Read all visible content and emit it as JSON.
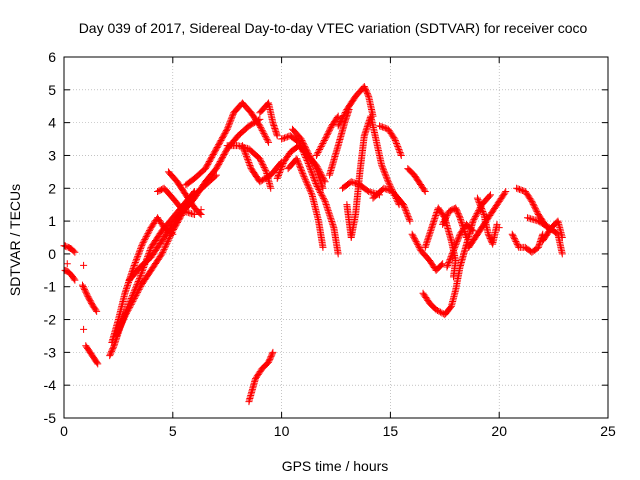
{
  "chart_data": {
    "type": "scatter",
    "title": "Day 039 of 2017, Sidereal Day-to-day VTEC variation (SDTVAR) for receiver coco",
    "xlabel": "GPS time / hours",
    "ylabel": "SDTVAR / TECUs",
    "xlim": [
      0,
      25
    ],
    "ylim": [
      -5,
      6
    ],
    "xticks": [
      0,
      5,
      10,
      15,
      20,
      25
    ],
    "yticks": [
      -5,
      -4,
      -3,
      -2,
      -1,
      0,
      1,
      2,
      3,
      4,
      5,
      6
    ],
    "grid": true,
    "legend": "none",
    "marker": "+",
    "color": "#ff0000",
    "traces": [
      {
        "points": [
          [
            0.0,
            0.25
          ],
          [
            0.2,
            0.2
          ],
          [
            0.35,
            0.15
          ],
          [
            0.5,
            0.05
          ]
        ]
      },
      {
        "points": [
          [
            0.05,
            -0.5
          ],
          [
            0.2,
            -0.55
          ],
          [
            0.35,
            -0.65
          ],
          [
            0.5,
            -0.8
          ]
        ]
      },
      {
        "points": [
          [
            0.85,
            -0.95
          ],
          [
            1.1,
            -1.3
          ],
          [
            1.3,
            -1.55
          ],
          [
            1.5,
            -1.75
          ]
        ]
      },
      {
        "points": [
          [
            1.0,
            -2.8
          ],
          [
            1.2,
            -3.0
          ],
          [
            1.4,
            -3.2
          ],
          [
            1.55,
            -3.35
          ]
        ]
      },
      {
        "points": [
          [
            2.1,
            -3.1
          ],
          [
            2.3,
            -2.8
          ],
          [
            2.6,
            -2.2
          ],
          [
            3.0,
            -1.5
          ],
          [
            3.5,
            -0.7
          ],
          [
            4.0,
            0.2
          ],
          [
            4.5,
            0.7
          ],
          [
            5.0,
            1.1
          ],
          [
            5.5,
            1.5
          ],
          [
            6.0,
            1.9
          ]
        ]
      },
      {
        "points": [
          [
            2.2,
            -2.7
          ],
          [
            2.5,
            -2.0
          ],
          [
            2.8,
            -1.2
          ],
          [
            3.2,
            -0.4
          ],
          [
            3.6,
            0.3
          ],
          [
            4.0,
            0.8
          ],
          [
            4.3,
            1.1
          ],
          [
            4.6,
            0.8
          ],
          [
            5.0,
            0.6
          ]
        ]
      },
      {
        "points": [
          [
            2.4,
            -2.5
          ],
          [
            2.8,
            -1.9
          ],
          [
            3.2,
            -1.4
          ],
          [
            3.6,
            -0.9
          ],
          [
            4.0,
            -0.5
          ],
          [
            4.5,
            0.0
          ],
          [
            5.0,
            0.7
          ],
          [
            5.5,
            1.3
          ],
          [
            6.0,
            1.7
          ],
          [
            6.5,
            2.2
          ],
          [
            7.0,
            2.6
          ],
          [
            7.5,
            3.2
          ],
          [
            8.0,
            3.6
          ],
          [
            8.5,
            3.9
          ],
          [
            9.0,
            4.1
          ]
        ]
      },
      {
        "points": [
          [
            3.0,
            -0.8
          ],
          [
            3.5,
            -0.4
          ],
          [
            4.0,
            -0.1
          ],
          [
            4.5,
            0.4
          ],
          [
            5.0,
            0.9
          ],
          [
            5.5,
            1.4
          ],
          [
            6.0,
            1.8
          ],
          [
            6.5,
            2.1
          ],
          [
            7.0,
            2.4
          ]
        ]
      },
      {
        "points": [
          [
            4.3,
            1.9
          ],
          [
            4.6,
            2.0
          ],
          [
            5.0,
            1.7
          ],
          [
            5.5,
            1.3
          ],
          [
            6.0,
            1.2
          ]
        ]
      },
      {
        "points": [
          [
            4.8,
            2.5
          ],
          [
            5.2,
            2.2
          ],
          [
            5.6,
            1.8
          ],
          [
            6.0,
            1.4
          ],
          [
            6.3,
            1.2
          ]
        ]
      },
      {
        "points": [
          [
            5.6,
            2.1
          ],
          [
            6.0,
            2.3
          ],
          [
            6.5,
            2.6
          ],
          [
            7.0,
            3.2
          ],
          [
            7.5,
            3.8
          ],
          [
            7.8,
            4.3
          ],
          [
            8.2,
            4.6
          ],
          [
            8.6,
            4.3
          ],
          [
            9.0,
            3.9
          ],
          [
            9.4,
            3.4
          ]
        ]
      },
      {
        "points": [
          [
            7.5,
            3.3
          ],
          [
            8.0,
            3.3
          ],
          [
            8.5,
            3.2
          ],
          [
            9.0,
            2.9
          ],
          [
            9.3,
            2.5
          ],
          [
            9.5,
            2.0
          ]
        ]
      },
      {
        "points": [
          [
            8.2,
            3.3
          ],
          [
            8.6,
            2.6
          ],
          [
            9.0,
            2.2
          ],
          [
            9.5,
            2.4
          ],
          [
            10.0,
            2.8
          ]
        ]
      },
      {
        "points": [
          [
            9.0,
            4.3
          ],
          [
            9.4,
            4.6
          ],
          [
            9.6,
            4.0
          ],
          [
            9.8,
            3.6
          ]
        ]
      },
      {
        "points": [
          [
            8.5,
            -4.5
          ],
          [
            8.8,
            -3.8
          ],
          [
            9.1,
            -3.5
          ],
          [
            9.4,
            -3.3
          ],
          [
            9.6,
            -3.0
          ]
        ]
      },
      {
        "points": [
          [
            9.8,
            2.3
          ],
          [
            10.1,
            2.8
          ],
          [
            10.4,
            3.1
          ],
          [
            10.8,
            3.3
          ],
          [
            11.2,
            3.0
          ],
          [
            11.6,
            2.7
          ],
          [
            12.0,
            2.2
          ]
        ]
      },
      {
        "points": [
          [
            10.0,
            3.5
          ],
          [
            10.4,
            3.6
          ],
          [
            10.8,
            3.4
          ],
          [
            11.2,
            2.8
          ],
          [
            11.6,
            2.1
          ],
          [
            12.0,
            1.6
          ],
          [
            12.4,
            0.8
          ],
          [
            12.6,
            0.0
          ]
        ]
      },
      {
        "points": [
          [
            10.3,
            2.6
          ],
          [
            10.7,
            2.9
          ],
          [
            11.0,
            2.4
          ],
          [
            11.4,
            1.8
          ],
          [
            11.7,
            1.0
          ],
          [
            11.9,
            0.2
          ]
        ]
      },
      {
        "points": [
          [
            10.5,
            3.8
          ],
          [
            10.9,
            3.5
          ],
          [
            11.2,
            3.1
          ],
          [
            11.6,
            2.6
          ],
          [
            11.9,
            2.0
          ]
        ]
      },
      {
        "points": [
          [
            11.6,
            3.0
          ],
          [
            12.0,
            3.5
          ],
          [
            12.3,
            3.9
          ],
          [
            12.6,
            4.2
          ]
        ]
      },
      {
        "points": [
          [
            12.2,
            2.4
          ],
          [
            12.6,
            3.3
          ],
          [
            12.9,
            4.0
          ],
          [
            13.1,
            4.4
          ]
        ]
      },
      {
        "points": [
          [
            12.6,
            3.9
          ],
          [
            13.0,
            4.4
          ],
          [
            13.4,
            4.8
          ],
          [
            13.8,
            5.1
          ],
          [
            14.0,
            4.8
          ],
          [
            14.2,
            4.2
          ]
        ]
      },
      {
        "points": [
          [
            12.8,
            2.0
          ],
          [
            13.2,
            2.2
          ],
          [
            13.6,
            2.1
          ],
          [
            14.0,
            1.9
          ],
          [
            14.5,
            1.8
          ]
        ]
      },
      {
        "points": [
          [
            13.0,
            1.5
          ],
          [
            13.2,
            0.5
          ],
          [
            13.4,
            1.2
          ],
          [
            13.6,
            2.5
          ],
          [
            13.8,
            3.6
          ],
          [
            14.1,
            4.2
          ],
          [
            14.3,
            3.6
          ],
          [
            14.6,
            2.7
          ],
          [
            14.9,
            2.2
          ],
          [
            15.4,
            1.5
          ]
        ]
      },
      {
        "points": [
          [
            14.5,
            3.9
          ],
          [
            14.9,
            3.8
          ],
          [
            15.2,
            3.5
          ],
          [
            15.5,
            3.0
          ]
        ]
      },
      {
        "points": [
          [
            14.2,
            1.7
          ],
          [
            14.7,
            2.0
          ],
          [
            15.1,
            1.9
          ],
          [
            15.6,
            1.5
          ],
          [
            15.9,
            1.0
          ]
        ]
      },
      {
        "points": [
          [
            15.8,
            2.6
          ],
          [
            16.1,
            2.4
          ],
          [
            16.3,
            2.2
          ],
          [
            16.6,
            1.9
          ]
        ]
      },
      {
        "points": [
          [
            16.0,
            0.6
          ],
          [
            16.4,
            0.1
          ],
          [
            16.8,
            -0.2
          ],
          [
            17.1,
            -0.5
          ],
          [
            17.4,
            -0.3
          ]
        ]
      },
      {
        "points": [
          [
            16.6,
            0.2
          ],
          [
            16.9,
            0.8
          ],
          [
            17.2,
            1.4
          ],
          [
            17.5,
            1.1
          ],
          [
            17.8,
            0.4
          ],
          [
            18.0,
            -0.2
          ],
          [
            17.9,
            -0.7
          ]
        ]
      },
      {
        "points": [
          [
            16.5,
            -1.2
          ],
          [
            16.8,
            -1.5
          ],
          [
            17.1,
            -1.7
          ],
          [
            17.5,
            -1.85
          ],
          [
            17.8,
            -1.6
          ],
          [
            18.0,
            -1.1
          ],
          [
            18.2,
            -0.4
          ],
          [
            18.5,
            0.3
          ],
          [
            18.8,
            1.0
          ],
          [
            19.2,
            1.5
          ],
          [
            19.6,
            1.8
          ]
        ]
      },
      {
        "points": [
          [
            17.6,
            -0.4
          ],
          [
            17.9,
            0.1
          ],
          [
            18.2,
            0.6
          ],
          [
            18.5,
            0.9
          ],
          [
            18.8,
            0.7
          ]
        ]
      },
      {
        "points": [
          [
            17.4,
            0.9
          ],
          [
            17.7,
            1.3
          ],
          [
            18.0,
            1.4
          ],
          [
            18.2,
            1.1
          ],
          [
            18.5,
            0.5
          ]
        ]
      },
      {
        "points": [
          [
            18.6,
            0.2
          ],
          [
            19.0,
            0.6
          ],
          [
            19.4,
            1.0
          ],
          [
            19.7,
            1.3
          ],
          [
            20.0,
            1.6
          ],
          [
            20.3,
            1.9
          ]
        ]
      },
      {
        "points": [
          [
            19.0,
            1.7
          ],
          [
            19.3,
            1.2
          ],
          [
            19.5,
            0.6
          ],
          [
            19.7,
            0.3
          ],
          [
            19.9,
            0.9
          ]
        ]
      },
      {
        "points": [
          [
            20.6,
            0.6
          ],
          [
            20.9,
            0.2
          ],
          [
            21.2,
            0.2
          ],
          [
            21.5,
            0.05
          ],
          [
            21.8,
            0.2
          ],
          [
            22.0,
            0.6
          ]
        ]
      },
      {
        "points": [
          [
            20.8,
            2.0
          ],
          [
            21.2,
            1.9
          ],
          [
            21.5,
            1.6
          ],
          [
            21.8,
            1.2
          ],
          [
            22.2,
            0.8
          ]
        ]
      },
      {
        "points": [
          [
            21.3,
            1.1
          ],
          [
            21.8,
            1.0
          ],
          [
            22.3,
            0.8
          ],
          [
            22.7,
            0.6
          ],
          [
            22.9,
            0.0
          ]
        ]
      },
      {
        "points": [
          [
            22.0,
            0.4
          ],
          [
            22.4,
            0.8
          ],
          [
            22.7,
            1.0
          ],
          [
            22.9,
            0.5
          ]
        ]
      }
    ],
    "isolated_points": [
      [
        0.05,
        0.25
      ],
      [
        0.15,
        -0.3
      ],
      [
        0.9,
        -2.3
      ],
      [
        0.9,
        -0.35
      ],
      [
        6.3,
        1.35
      ],
      [
        19.4,
        1.15
      ],
      [
        20.0,
        0.8
      ]
    ]
  }
}
